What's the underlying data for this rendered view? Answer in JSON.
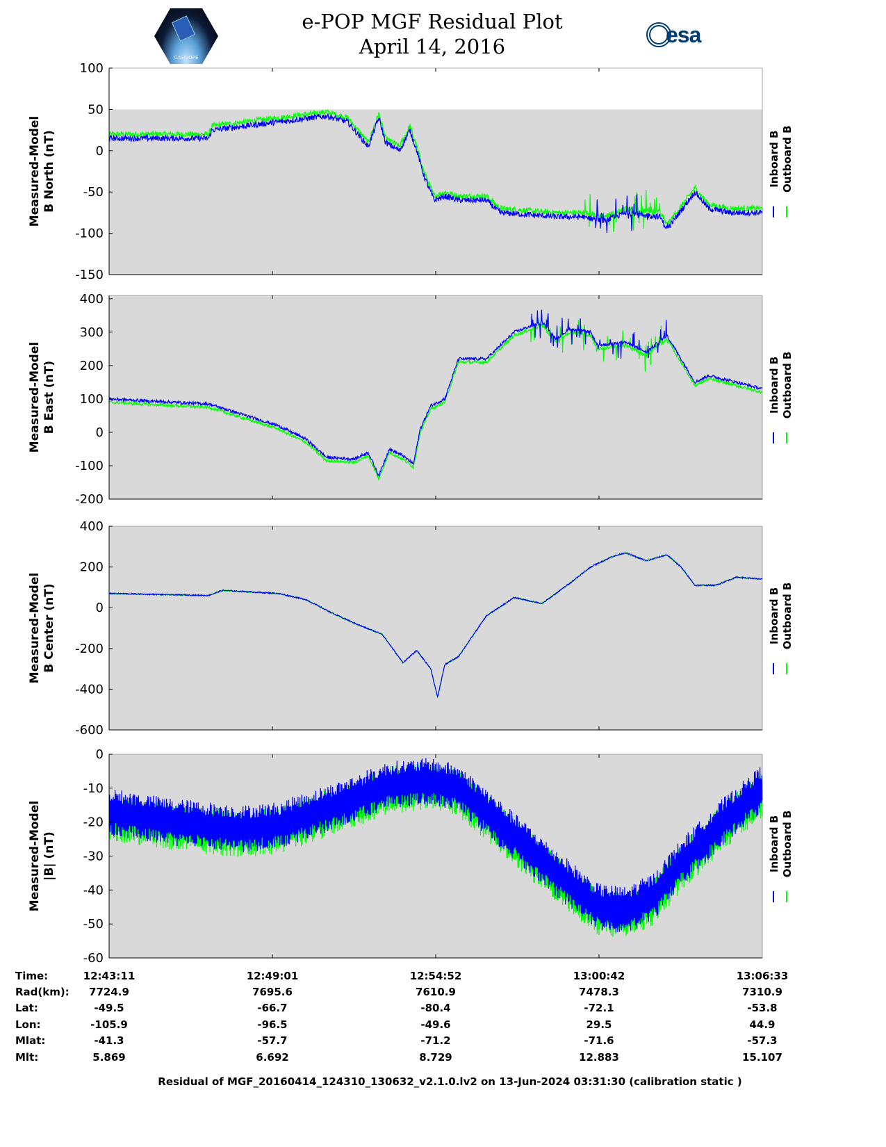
{
  "header": {
    "title_line1": "e-POP MGF Residual Plot",
    "title_line2": "April 14, 2016",
    "left_logo_text": "CASSIOPE",
    "right_logo_text": "esa"
  },
  "chart_data": [
    {
      "type": "line",
      "ylabel": [
        "Measured-Model",
        "B North (nT)"
      ],
      "ylim": [
        -150,
        100
      ],
      "yticks": [
        100,
        50,
        0,
        -50,
        -100,
        -150
      ],
      "xlim_min": [
        0,
        23.37
      ],
      "legend": [
        "Inboard B",
        "Outboard B"
      ],
      "legend_placement": "right",
      "series": [
        {
          "name": "Inboard B",
          "color": "#0000ff",
          "x": [
            0,
            3.56,
            3.68,
            7.78,
            8.53,
            9.27,
            9.65,
            9.89,
            10.39,
            10.76,
            11.01,
            11.26,
            11.63,
            12.01,
            12.5,
            13.5,
            13.99,
            15.99,
            16.98,
            17.73,
            18.47,
            19.71,
            19.96,
            20.96,
            21.45,
            22.2,
            23.37
          ],
          "y": [
            15,
            15,
            25,
            42,
            35,
            5,
            40,
            10,
            0,
            25,
            0,
            -30,
            -60,
            -55,
            -60,
            -60,
            -75,
            -80,
            -80,
            -85,
            -75,
            -80,
            -95,
            -50,
            -70,
            -75,
            -75
          ]
        },
        {
          "name": "Outboard B",
          "color": "#00ff00",
          "offset_from_inboard": 5
        }
      ]
    },
    {
      "type": "line",
      "ylabel": [
        "Measured-Model",
        "B East (nT)"
      ],
      "ylim": [
        -200,
        410
      ],
      "yticks": [
        400,
        300,
        200,
        100,
        0,
        -100,
        -200
      ],
      "xlim_min": [
        0,
        23.37
      ],
      "legend": [
        "Inboard B",
        "Outboard B"
      ],
      "legend_placement": "right",
      "series": [
        {
          "name": "Inboard B",
          "color": "#0000ff",
          "x": [
            0,
            2.31,
            3.56,
            6.05,
            7.04,
            7.78,
            8.78,
            9.27,
            9.65,
            10.02,
            10.51,
            10.89,
            11.13,
            11.51,
            12.01,
            12.5,
            13.5,
            14.49,
            15.49,
            15.99,
            16.48,
            17.23,
            17.48,
            18.47,
            19.22,
            19.96,
            20.96,
            21.45,
            22.45,
            23.37
          ],
          "y": [
            100,
            90,
            85,
            20,
            -20,
            -75,
            -80,
            -60,
            -130,
            -50,
            -70,
            -95,
            10,
            80,
            100,
            220,
            220,
            300,
            330,
            280,
            310,
            300,
            260,
            270,
            240,
            290,
            150,
            170,
            150,
            130
          ]
        },
        {
          "name": "Outboard B",
          "color": "#00ff00",
          "offset_from_inboard": -10
        }
      ]
    },
    {
      "type": "line",
      "ylabel": [
        "Measured-Model",
        "B Center (nT)"
      ],
      "ylim": [
        -600,
        400
      ],
      "yticks": [
        400,
        200,
        0,
        -200,
        -400,
        -600
      ],
      "xlim_min": [
        0,
        23.37
      ],
      "legend": [
        "Inboard B",
        "Outboard B"
      ],
      "legend_placement": "right",
      "series": [
        {
          "name": "Inboard B",
          "color": "#0000ff",
          "x": [
            0,
            3.56,
            4.05,
            6.05,
            7.04,
            8.03,
            9.02,
            9.77,
            10.51,
            11.01,
            11.51,
            11.75,
            12.01,
            12.5,
            13.5,
            14.49,
            15.49,
            16.48,
            17.23,
            17.98,
            18.47,
            19.22,
            19.96,
            20.46,
            20.96,
            21.7,
            22.45,
            23.37
          ],
          "y": [
            70,
            60,
            85,
            70,
            40,
            -30,
            -90,
            -130,
            -270,
            -210,
            -300,
            -440,
            -280,
            -240,
            -40,
            50,
            20,
            120,
            200,
            250,
            270,
            230,
            260,
            200,
            110,
            110,
            150,
            140
          ]
        },
        {
          "name": "Outboard B",
          "color": "#00ff00",
          "offset_from_inboard": 0
        }
      ]
    },
    {
      "type": "line",
      "ylabel": [
        "Measured-Model",
        "|B| (nT)"
      ],
      "ylim": [
        -60,
        0
      ],
      "yticks": [
        0,
        -10,
        -20,
        -30,
        -40,
        -50,
        -60
      ],
      "xlim_min": [
        0,
        23.37
      ],
      "legend": [
        "Inboard B",
        "Outboard B"
      ],
      "legend_placement": "right",
      "series": [
        {
          "name": "Inboard B",
          "color": "#0000ff",
          "x": [
            0,
            2.31,
            4.8,
            6.05,
            8.53,
            10.02,
            11.51,
            12.5,
            13.5,
            15.99,
            17.48,
            18.47,
            19.47,
            20.46,
            21.95,
            23.37
          ],
          "y": [
            -17,
            -20,
            -22,
            -21,
            -14,
            -9,
            -8,
            -10,
            -17,
            -35,
            -45,
            -46,
            -42,
            -32,
            -20,
            -10
          ]
        },
        {
          "name": "Outboard B",
          "color": "#00ff00",
          "offset_from_inboard": -1.5
        }
      ]
    }
  ],
  "info_table": {
    "labels": [
      "Time:",
      "Rad(km):",
      "Lat:",
      "Lon:",
      "Mlat:",
      "Mlt:"
    ],
    "columns": [
      [
        "12:43:11",
        "7724.9",
        "-49.5",
        "-105.9",
        "-41.3",
        "5.869"
      ],
      [
        "12:49:01",
        "7695.6",
        "-66.7",
        "-96.5",
        "-57.7",
        "6.692"
      ],
      [
        "12:54:52",
        "7610.9",
        "-80.4",
        "-49.6",
        "-71.2",
        "8.729"
      ],
      [
        "13:00:42",
        "7478.3",
        "-72.1",
        "29.5",
        "-71.6",
        "12.883"
      ],
      [
        "13:06:33",
        "7310.9",
        "-53.8",
        "44.9",
        "-57.3",
        "15.107"
      ]
    ]
  },
  "footer": "Residual of MGF_20160414_124310_130632_v2.1.0.lv2 on 13-Jun-2024 03:31:30 (calibration static )"
}
